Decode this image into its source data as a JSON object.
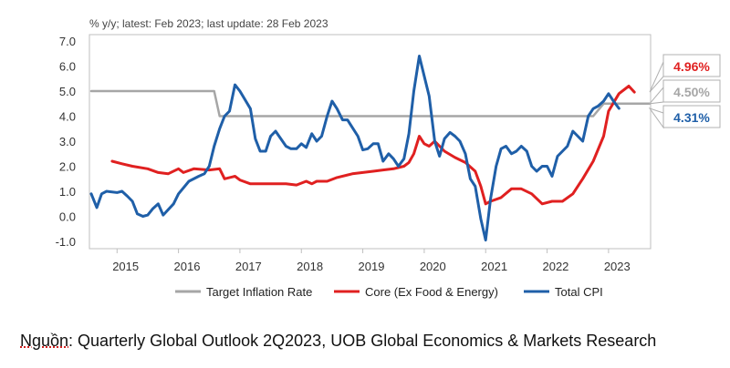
{
  "chart_data": {
    "type": "line",
    "subtitle": "% y/y; latest: Feb 2023; last update: 28 Feb 2023",
    "xlim": [
      2014.58,
      2023.67
    ],
    "ylim": [
      -1.0,
      7.0
    ],
    "y_ticks": [
      "7.0",
      "6.0",
      "5.0",
      "4.0",
      "3.0",
      "2.0",
      "1.0",
      "0.0",
      "-1.0"
    ],
    "x_ticks": [
      {
        "label": "2015",
        "at": 2015.08
      },
      {
        "label": "2016",
        "at": 2016.08
      },
      {
        "label": "2017",
        "at": 2017.08
      },
      {
        "label": "2018",
        "at": 2018.08
      },
      {
        "label": "2019",
        "at": 2019.08
      },
      {
        "label": "2020",
        "at": 2020.08
      },
      {
        "label": "2021",
        "at": 2021.08
      },
      {
        "label": "2022",
        "at": 2022.08
      },
      {
        "label": "2023",
        "at": 2023.08
      }
    ],
    "series": [
      {
        "name": "Target Inflation Rate",
        "color": "#a6a6a6",
        "points": [
          [
            2014.58,
            5.0
          ],
          [
            2016.58,
            5.0
          ],
          [
            2016.67,
            4.0
          ],
          [
            2022.75,
            4.0
          ],
          [
            2022.92,
            4.5
          ],
          [
            2023.67,
            4.5
          ]
        ]
      },
      {
        "name": "Core (Ex Food & Energy)",
        "color": "#e02020",
        "points": [
          [
            2014.92,
            2.2
          ],
          [
            2015.08,
            2.1
          ],
          [
            2015.25,
            2.0
          ],
          [
            2015.5,
            1.9
          ],
          [
            2015.67,
            1.75
          ],
          [
            2015.83,
            1.7
          ],
          [
            2016.0,
            1.9
          ],
          [
            2016.08,
            1.75
          ],
          [
            2016.25,
            1.9
          ],
          [
            2016.5,
            1.85
          ],
          [
            2016.67,
            1.9
          ],
          [
            2016.75,
            1.5
          ],
          [
            2016.92,
            1.6
          ],
          [
            2017.0,
            1.45
          ],
          [
            2017.17,
            1.3
          ],
          [
            2017.5,
            1.3
          ],
          [
            2017.75,
            1.3
          ],
          [
            2017.92,
            1.25
          ],
          [
            2018.08,
            1.4
          ],
          [
            2018.17,
            1.3
          ],
          [
            2018.25,
            1.4
          ],
          [
            2018.42,
            1.4
          ],
          [
            2018.58,
            1.55
          ],
          [
            2018.83,
            1.7
          ],
          [
            2019.0,
            1.75
          ],
          [
            2019.17,
            1.8
          ],
          [
            2019.33,
            1.85
          ],
          [
            2019.5,
            1.9
          ],
          [
            2019.67,
            2.0
          ],
          [
            2019.75,
            2.15
          ],
          [
            2019.83,
            2.5
          ],
          [
            2019.92,
            3.2
          ],
          [
            2020.0,
            2.9
          ],
          [
            2020.08,
            2.8
          ],
          [
            2020.17,
            3.0
          ],
          [
            2020.33,
            2.6
          ],
          [
            2020.5,
            2.35
          ],
          [
            2020.67,
            2.15
          ],
          [
            2020.83,
            1.8
          ],
          [
            2020.92,
            1.2
          ],
          [
            2021.0,
            0.5
          ],
          [
            2021.08,
            0.6
          ],
          [
            2021.25,
            0.75
          ],
          [
            2021.42,
            1.1
          ],
          [
            2021.58,
            1.1
          ],
          [
            2021.75,
            0.9
          ],
          [
            2021.92,
            0.5
          ],
          [
            2022.08,
            0.6
          ],
          [
            2022.25,
            0.6
          ],
          [
            2022.42,
            0.9
          ],
          [
            2022.58,
            1.5
          ],
          [
            2022.75,
            2.2
          ],
          [
            2022.92,
            3.2
          ],
          [
            2023.0,
            4.2
          ],
          [
            2023.17,
            4.9
          ],
          [
            2023.33,
            5.2
          ],
          [
            2023.42,
            4.96
          ]
        ]
      },
      {
        "name": "Total CPI",
        "color": "#1f5fa8",
        "points": [
          [
            2014.58,
            0.9
          ],
          [
            2014.67,
            0.35
          ],
          [
            2014.75,
            0.9
          ],
          [
            2014.83,
            1.0
          ],
          [
            2015.0,
            0.95
          ],
          [
            2015.08,
            1.0
          ],
          [
            2015.17,
            0.8
          ],
          [
            2015.25,
            0.6
          ],
          [
            2015.33,
            0.1
          ],
          [
            2015.42,
            0.0
          ],
          [
            2015.5,
            0.05
          ],
          [
            2015.58,
            0.3
          ],
          [
            2015.67,
            0.5
          ],
          [
            2015.75,
            0.05
          ],
          [
            2015.92,
            0.5
          ],
          [
            2016.0,
            0.9
          ],
          [
            2016.17,
            1.4
          ],
          [
            2016.33,
            1.6
          ],
          [
            2016.42,
            1.7
          ],
          [
            2016.5,
            2.0
          ],
          [
            2016.58,
            2.8
          ],
          [
            2016.67,
            3.5
          ],
          [
            2016.75,
            4.0
          ],
          [
            2016.83,
            4.2
          ],
          [
            2016.92,
            5.25
          ],
          [
            2017.0,
            5.0
          ],
          [
            2017.17,
            4.3
          ],
          [
            2017.25,
            3.1
          ],
          [
            2017.33,
            2.6
          ],
          [
            2017.42,
            2.6
          ],
          [
            2017.5,
            3.2
          ],
          [
            2017.58,
            3.4
          ],
          [
            2017.75,
            2.8
          ],
          [
            2017.83,
            2.7
          ],
          [
            2017.92,
            2.7
          ],
          [
            2018.0,
            2.9
          ],
          [
            2018.08,
            2.75
          ],
          [
            2018.17,
            3.3
          ],
          [
            2018.25,
            3.0
          ],
          [
            2018.33,
            3.2
          ],
          [
            2018.42,
            4.0
          ],
          [
            2018.5,
            4.6
          ],
          [
            2018.58,
            4.3
          ],
          [
            2018.67,
            3.85
          ],
          [
            2018.75,
            3.85
          ],
          [
            2018.92,
            3.2
          ],
          [
            2019.0,
            2.65
          ],
          [
            2019.08,
            2.7
          ],
          [
            2019.17,
            2.9
          ],
          [
            2019.25,
            2.9
          ],
          [
            2019.33,
            2.2
          ],
          [
            2019.42,
            2.5
          ],
          [
            2019.5,
            2.3
          ],
          [
            2019.58,
            2.0
          ],
          [
            2019.67,
            2.3
          ],
          [
            2019.75,
            3.3
          ],
          [
            2019.83,
            5.0
          ],
          [
            2019.92,
            6.4
          ],
          [
            2020.0,
            5.6
          ],
          [
            2020.08,
            4.8
          ],
          [
            2020.17,
            3.0
          ],
          [
            2020.25,
            2.4
          ],
          [
            2020.33,
            3.1
          ],
          [
            2020.42,
            3.35
          ],
          [
            2020.5,
            3.2
          ],
          [
            2020.58,
            3.0
          ],
          [
            2020.67,
            2.5
          ],
          [
            2020.75,
            1.5
          ],
          [
            2020.83,
            1.2
          ],
          [
            2020.92,
            -0.1
          ],
          [
            2021.0,
            -0.95
          ],
          [
            2021.08,
            0.7
          ],
          [
            2021.17,
            2.0
          ],
          [
            2021.25,
            2.7
          ],
          [
            2021.33,
            2.8
          ],
          [
            2021.42,
            2.5
          ],
          [
            2021.5,
            2.6
          ],
          [
            2021.58,
            2.8
          ],
          [
            2021.67,
            2.6
          ],
          [
            2021.75,
            2.0
          ],
          [
            2021.83,
            1.8
          ],
          [
            2021.92,
            2.0
          ],
          [
            2022.0,
            2.0
          ],
          [
            2022.08,
            1.6
          ],
          [
            2022.17,
            2.4
          ],
          [
            2022.25,
            2.6
          ],
          [
            2022.33,
            2.8
          ],
          [
            2022.42,
            3.4
          ],
          [
            2022.5,
            3.2
          ],
          [
            2022.58,
            3.0
          ],
          [
            2022.67,
            4.0
          ],
          [
            2022.75,
            4.3
          ],
          [
            2022.83,
            4.4
          ],
          [
            2022.92,
            4.6
          ],
          [
            2023.0,
            4.9
          ],
          [
            2023.08,
            4.6
          ],
          [
            2023.17,
            4.31
          ]
        ]
      }
    ],
    "legend": {
      "placement": "bottom",
      "entries": [
        {
          "label": "Target Inflation Rate",
          "color": "#a6a6a6"
        },
        {
          "label": "Core (Ex Food & Energy)",
          "color": "#e02020"
        },
        {
          "label": "Total CPI",
          "color": "#1f5fa8"
        }
      ]
    },
    "callouts": [
      {
        "label": "4.96%",
        "color": "#e02020",
        "value": 4.96
      },
      {
        "label": "4.50%",
        "color": "#a6a6a6",
        "value": 4.5
      },
      {
        "label": "4.31%",
        "color": "#1f5fa8",
        "value": 4.31
      }
    ]
  },
  "source": {
    "label": "Nguồn",
    "text": ": Quarterly Global Outlook 2Q2023, UOB Global Economics & Markets Research"
  }
}
